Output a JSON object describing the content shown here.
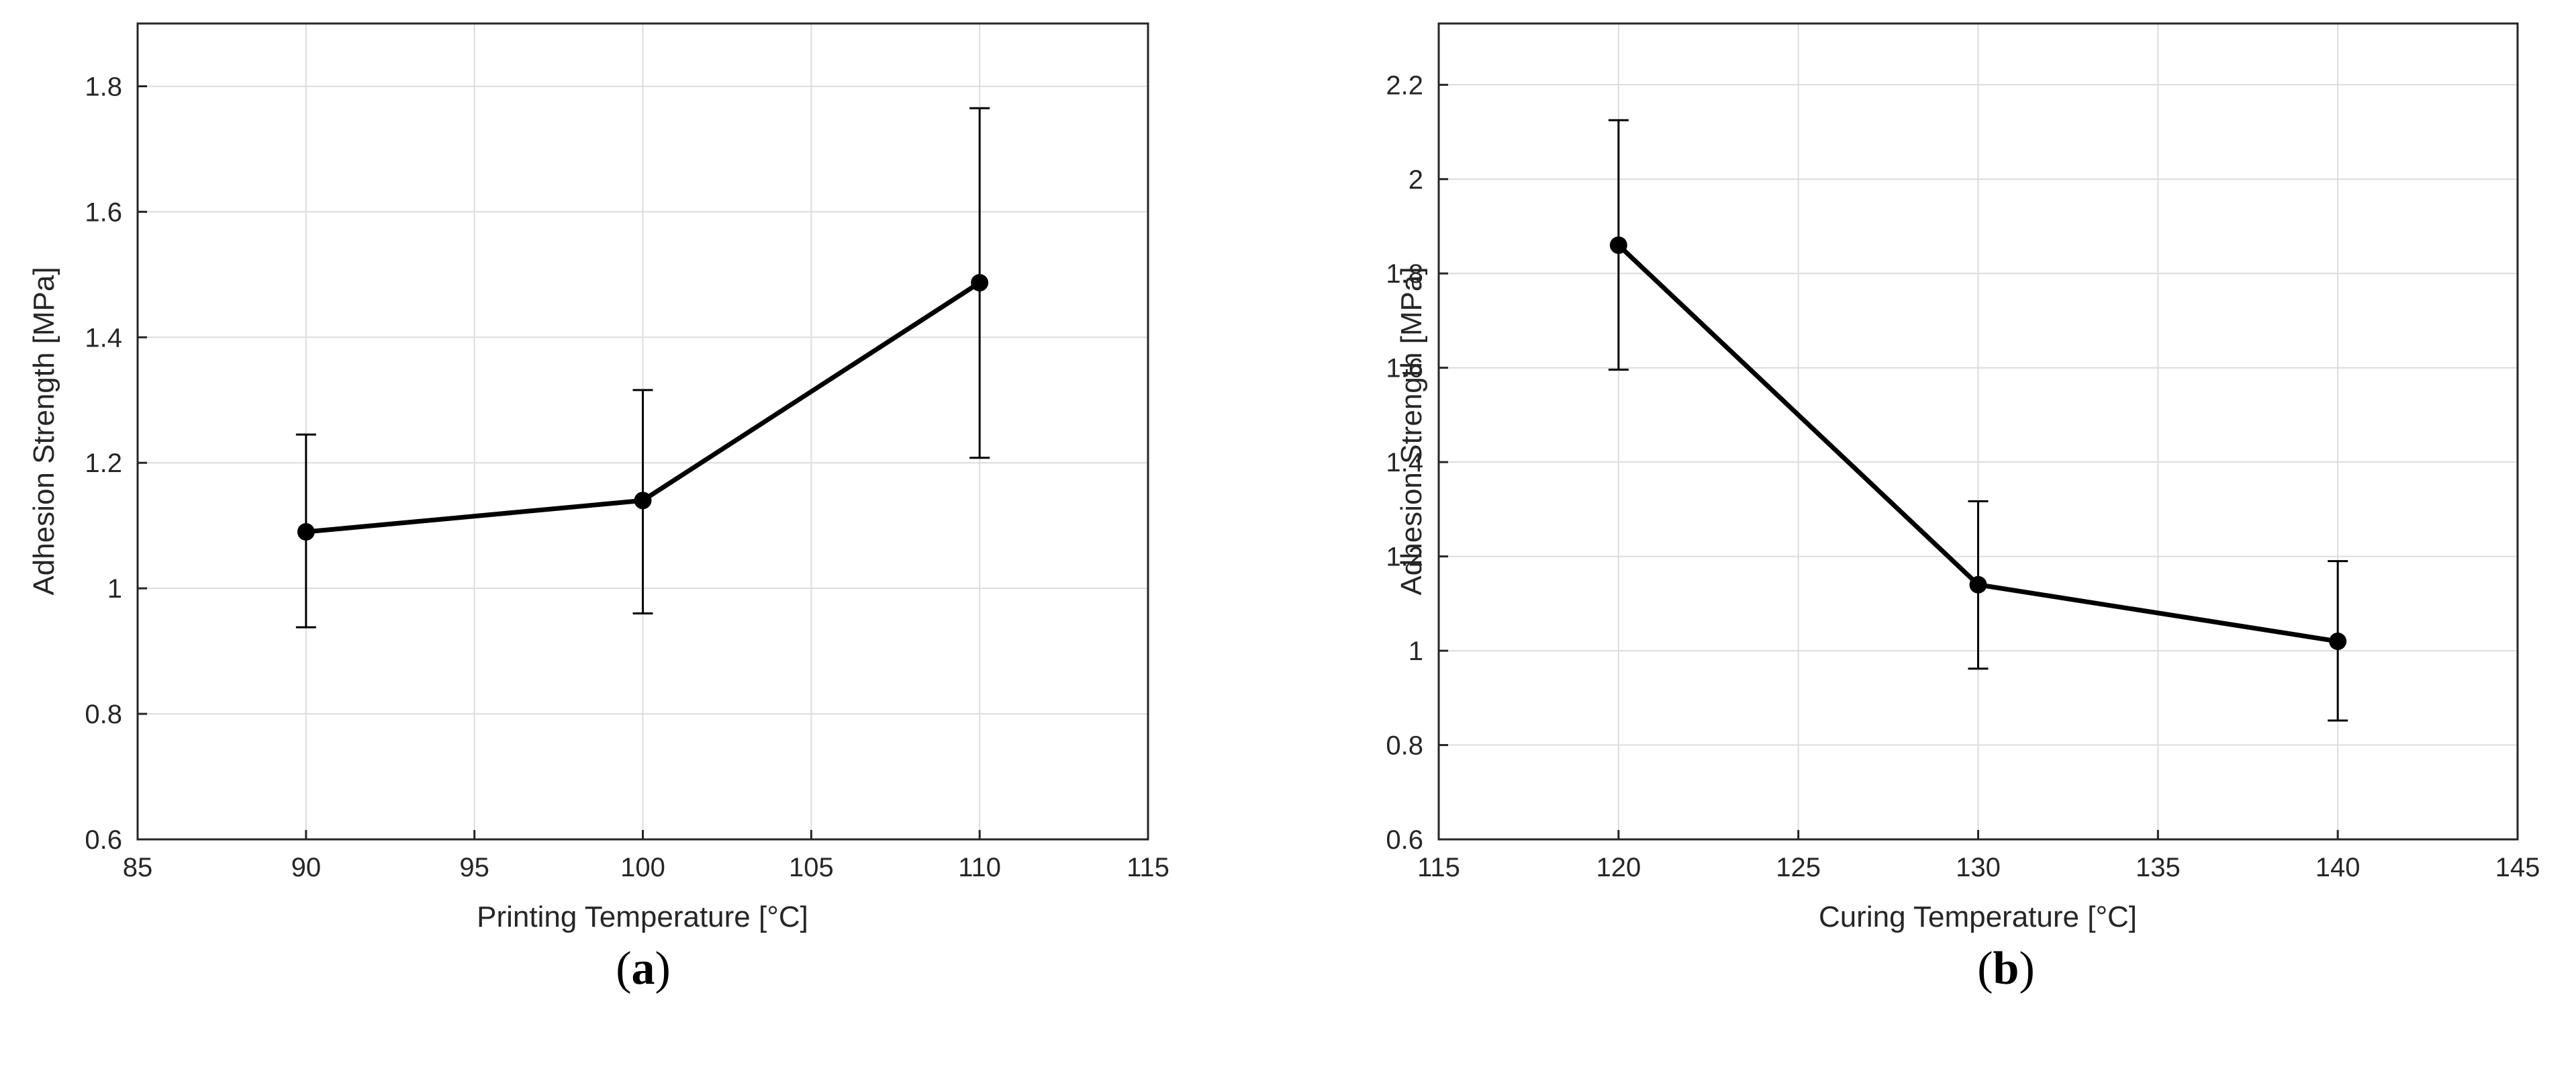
{
  "colors": {
    "series": "#000000",
    "axis": "#262626",
    "grid": "#dcdcdc",
    "background": "#ffffff"
  },
  "chart_data": [
    {
      "type": "line",
      "panel_label": "a",
      "xlabel": "Printing Temperature [°C]",
      "ylabel": "Adhesion Strength [MPa]",
      "xlim": [
        85,
        115
      ],
      "ylim": [
        0.6,
        1.9
      ],
      "xticks": [
        85,
        90,
        95,
        100,
        105,
        110,
        115
      ],
      "xtick_labels": [
        "85",
        "90",
        "95",
        "100",
        "105",
        "110",
        "115"
      ],
      "yticks": [
        0.6,
        0.8,
        1.0,
        1.2,
        1.4,
        1.6,
        1.8
      ],
      "ytick_labels": [
        "0.6",
        "0.8",
        "1",
        "1.2",
        "1.4",
        "1.6",
        "1.8"
      ],
      "grid": true,
      "series": [
        {
          "x": [
            90,
            100,
            110
          ],
          "y": [
            1.09,
            1.14,
            1.487
          ],
          "err_low": [
            0.938,
            0.96,
            1.208
          ],
          "err_high": [
            1.245,
            1.316,
            1.765
          ],
          "marker": "circle"
        }
      ]
    },
    {
      "type": "line",
      "panel_label": "b",
      "xlabel": "Curing Temperature [°C]",
      "ylabel": "Adhesion Strength [MPa]",
      "xlim": [
        115,
        145
      ],
      "ylim": [
        0.6,
        2.33
      ],
      "xticks": [
        115,
        120,
        125,
        130,
        135,
        140,
        145
      ],
      "xtick_labels": [
        "115",
        "120",
        "125",
        "130",
        "135",
        "140",
        "145"
      ],
      "yticks": [
        0.6,
        0.8,
        1.0,
        1.2,
        1.4,
        1.6,
        1.8,
        2.0,
        2.2
      ],
      "ytick_labels": [
        "0.6",
        "0.8",
        "1",
        "1.2",
        "1.4",
        "1.6",
        "1.8",
        "2",
        "2.2"
      ],
      "grid": true,
      "series": [
        {
          "x": [
            120,
            130,
            140
          ],
          "y": [
            1.86,
            1.14,
            1.02
          ],
          "err_low": [
            1.596,
            0.962,
            0.852
          ],
          "err_high": [
            2.125,
            1.317,
            1.19
          ],
          "marker": "circle"
        }
      ]
    }
  ]
}
